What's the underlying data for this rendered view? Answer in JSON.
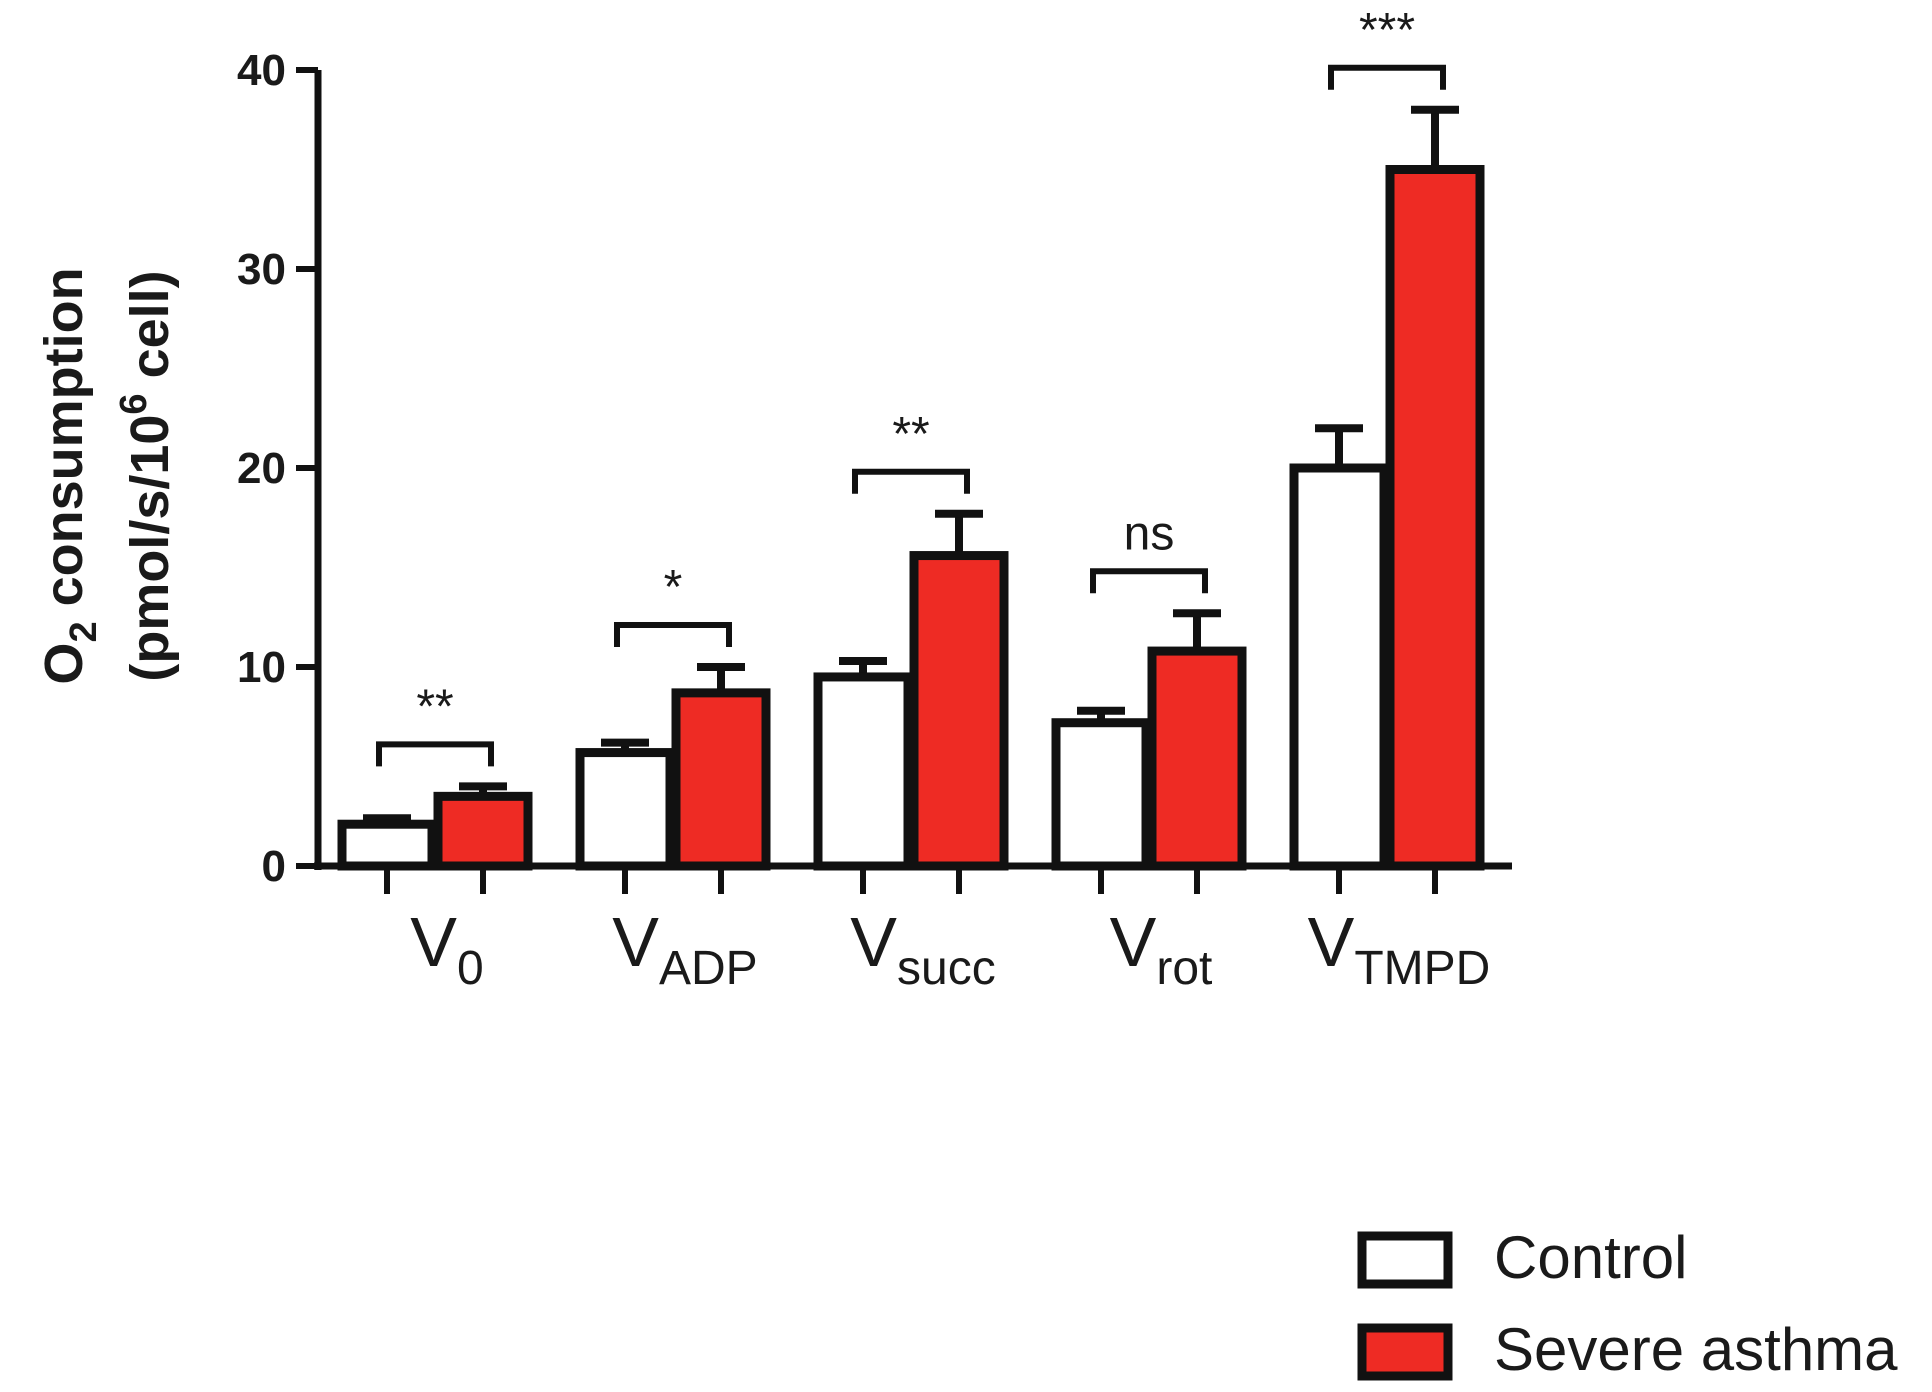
{
  "chart_data": {
    "type": "bar",
    "title": "",
    "ylabel": {
      "line1_main": "O",
      "line1_sub": "2",
      "line1_rest": " consumption",
      "line2_pre": "(pmol/s/10",
      "line2_sup": "6",
      "line2_post": " cell)"
    },
    "xlabel": "",
    "ylim": [
      0,
      40
    ],
    "yticks": [
      {
        "value": 0,
        "label": "0"
      },
      {
        "value": 10,
        "label": "10"
      },
      {
        "value": 20,
        "label": "20"
      },
      {
        "value": 30,
        "label": "30"
      },
      {
        "value": 40,
        "label": "40"
      }
    ],
    "categories": [
      {
        "main": "V",
        "sub": "0"
      },
      {
        "main": "V",
        "sub": "ADP"
      },
      {
        "main": "V",
        "sub": "succ"
      },
      {
        "main": "V",
        "sub": "rot"
      },
      {
        "main": "V",
        "sub": "TMPD"
      }
    ],
    "series": [
      {
        "name": "Control",
        "color": "#ffffff",
        "values": [
          2.1,
          5.7,
          9.5,
          7.2,
          20.0
        ],
        "errors": [
          0.3,
          0.5,
          0.8,
          0.6,
          2.0
        ]
      },
      {
        "name": "Severe asthma",
        "color": "#ee2b24",
        "values": [
          3.5,
          8.7,
          15.6,
          10.8,
          35.0
        ],
        "errors": [
          0.5,
          1.3,
          2.1,
          1.9,
          3.0
        ]
      }
    ],
    "significance": [
      "**",
      "*",
      "**",
      "ns",
      "***"
    ],
    "legend": {
      "position": "bottom-right",
      "entries": [
        {
          "label": "Control",
          "color": "#ffffff"
        },
        {
          "label": "Severe asthma",
          "color": "#ee2b24"
        }
      ]
    }
  }
}
